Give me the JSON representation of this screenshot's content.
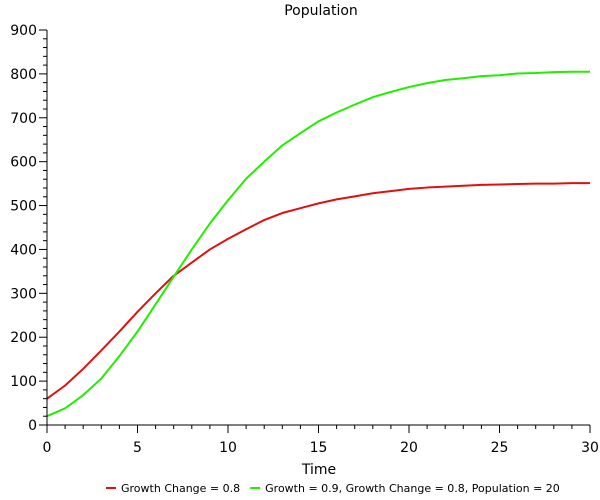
{
  "chart_data": {
    "type": "line",
    "title": "Population",
    "xlabel": "Time",
    "ylabel": "",
    "xlim": [
      0,
      30
    ],
    "ylim": [
      0,
      900
    ],
    "xticks": [
      0,
      5,
      10,
      15,
      20,
      25,
      30
    ],
    "yticks": [
      0,
      100,
      200,
      300,
      400,
      500,
      600,
      700,
      800,
      900
    ],
    "grid": false,
    "legend_position": "bottom",
    "x": [
      0,
      1,
      2,
      3,
      4,
      5,
      6,
      7,
      8,
      9,
      10,
      11,
      12,
      13,
      14,
      15,
      16,
      17,
      18,
      19,
      20,
      21,
      22,
      23,
      24,
      25,
      26,
      27,
      28,
      29,
      30
    ],
    "series": [
      {
        "name": "Growth Change = 0.8",
        "color": "#e01010",
        "values": [
          60,
          90,
          128,
          170,
          213,
          258,
          300,
          340,
          370,
          400,
          424,
          446,
          467,
          483,
          494,
          505,
          514,
          521,
          528,
          533,
          538,
          541,
          543,
          545,
          547,
          548,
          549,
          550,
          550,
          551,
          551
        ]
      },
      {
        "name": "Growth = 0.9, Growth Change = 0.8, Population = 20",
        "color": "#22ee00",
        "values": [
          20,
          38,
          68,
          106,
          157,
          213,
          275,
          338,
          400,
          459,
          512,
          561,
          600,
          637,
          665,
          692,
          712,
          730,
          747,
          759,
          770,
          779,
          786,
          790,
          795,
          797,
          801,
          802,
          804,
          805,
          805
        ]
      }
    ]
  }
}
